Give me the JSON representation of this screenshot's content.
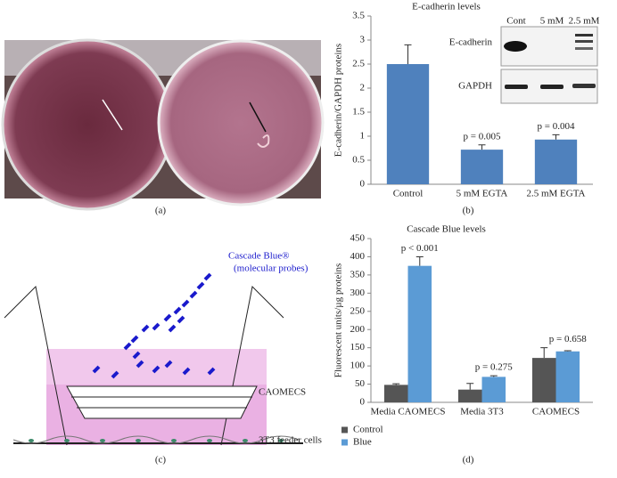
{
  "panels": {
    "a": "(a)",
    "b": "(b)",
    "c": "(c)",
    "d": "(d)"
  },
  "blot": {
    "lanes": [
      "Cont",
      "5 mM",
      "2.5 mM"
    ],
    "rows": [
      "E-cadherin",
      "GAPDH"
    ]
  },
  "diagram": {
    "probe": "Cascade Blue®",
    "probe_note": "(molecular probes)",
    "layer": "CAOMECS",
    "feeder": "3T3 feeder cells"
  },
  "chart_data": [
    {
      "type": "bar",
      "title": "E-cadherin levels",
      "y_label": "E-cadherin/GAPDH proteins",
      "categories": [
        "Control",
        "5 mM EGTA",
        "2.5 mM EGTA"
      ],
      "values": [
        2.5,
        0.72,
        0.93
      ],
      "errors": [
        0.4,
        0.1,
        0.1
      ],
      "color": "#4f81bd",
      "ylim": [
        0,
        3.5
      ],
      "yticks": [
        0,
        0.5,
        1,
        1.5,
        2,
        2.5,
        3,
        3.5
      ],
      "annotations": [
        {
          "category": "5 mM EGTA",
          "text": "p = 0.005"
        },
        {
          "category": "2.5 mM EGTA",
          "text": "p = 0.004"
        }
      ]
    },
    {
      "type": "bar",
      "title": "Cascade Blue levels",
      "y_label": "Fluorescent units/µg proteins",
      "categories": [
        "Media CAOMECS",
        "Media 3T3",
        "CAOMECS"
      ],
      "series": [
        {
          "name": "Control",
          "color": "#555555",
          "values": [
            48,
            35,
            122
          ],
          "errors": [
            3,
            17,
            28
          ]
        },
        {
          "name": "Blue",
          "color": "#5b9bd5",
          "values": [
            375,
            70,
            140
          ],
          "errors": [
            25,
            3,
            2
          ]
        }
      ],
      "ylim": [
        0,
        450
      ],
      "yticks": [
        0,
        50,
        100,
        150,
        200,
        250,
        300,
        350,
        400,
        450
      ],
      "annotations": [
        {
          "category": "Media CAOMECS",
          "text": "p < 0.001"
        },
        {
          "category": "Media 3T3",
          "text": "p = 0.275"
        },
        {
          "category": "CAOMECS",
          "text": "p = 0.658"
        }
      ]
    }
  ]
}
